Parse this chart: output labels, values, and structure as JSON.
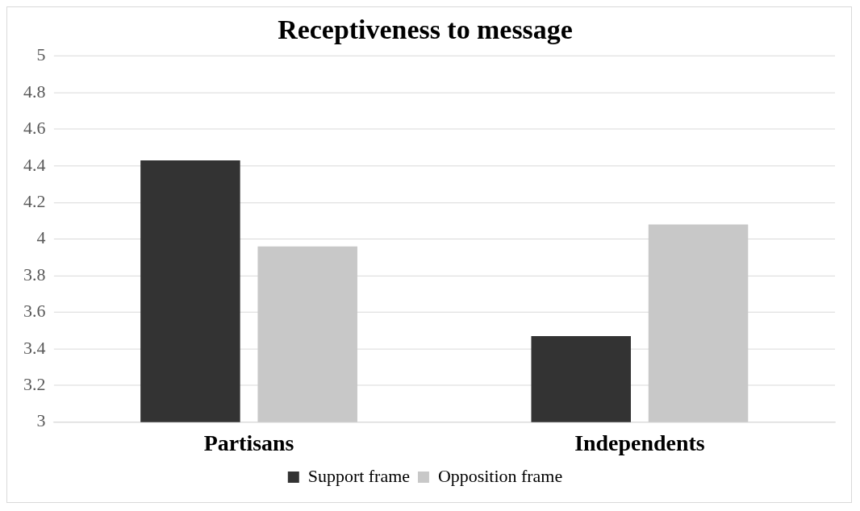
{
  "chart_data": {
    "type": "bar",
    "title": "Receptiveness to message",
    "categories": [
      "Partisans",
      "Independents"
    ],
    "series": [
      {
        "name": "Support frame",
        "color": "#333333",
        "values": [
          4.43,
          3.47
        ]
      },
      {
        "name": "Opposition frame",
        "color": "#c8c8c8",
        "values": [
          3.96,
          4.08
        ]
      }
    ],
    "ylim": [
      3,
      5
    ],
    "yticks": [
      3,
      3.2,
      3.4,
      3.6,
      3.8,
      4,
      4.2,
      4.4,
      4.6,
      4.8,
      5
    ],
    "grid": "y",
    "legend": "bottom"
  }
}
